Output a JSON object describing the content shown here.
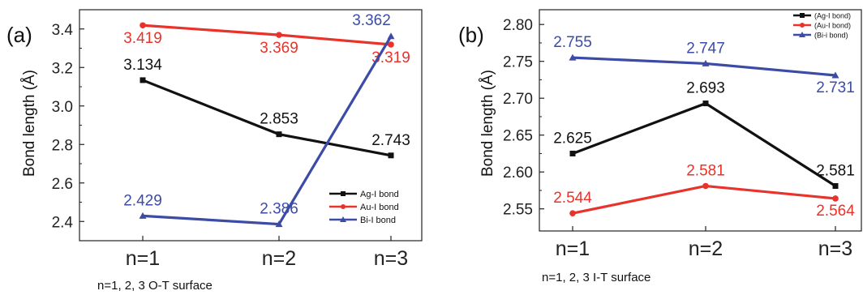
{
  "colors": {
    "black": "#111111",
    "red": "#e8332b",
    "blue": "#3b4ba6"
  },
  "chart_data": [
    {
      "type": "line",
      "panel_label": "(a)",
      "ylabel": "Bond length (Å)",
      "xlabel": "n=1, 2, 3 O-T surface",
      "categories": [
        "n=1",
        "n=2",
        "n=3"
      ],
      "ylim": [
        2.3,
        3.5
      ],
      "yticks": [
        "2.4",
        "2.6",
        "2.8",
        "3.0",
        "3.2",
        "3.4"
      ],
      "legend_position": "bottom-right",
      "series": [
        {
          "name": "Ag-I bond",
          "color": "#111111",
          "marker": "square",
          "values": [
            3.134,
            2.853,
            2.743
          ],
          "labels": [
            "3.134",
            "2.853",
            "2.743"
          ]
        },
        {
          "name": "Au-I bond",
          "color": "#e8332b",
          "marker": "circle",
          "values": [
            3.419,
            3.369,
            3.319
          ],
          "labels": [
            "3.419",
            "3.369",
            "3.319"
          ]
        },
        {
          "name": "Bi-I bond",
          "color": "#3b4ba6",
          "marker": "triangle",
          "values": [
            2.429,
            2.386,
            3.362
          ],
          "labels": [
            "2.429",
            "2.386",
            "3.362"
          ]
        }
      ]
    },
    {
      "type": "line",
      "panel_label": "(b)",
      "ylabel": "Bond length (Å)",
      "xlabel": "n=1, 2, 3 I-T surface",
      "categories": [
        "n=1",
        "n=2",
        "n=3"
      ],
      "ylim": [
        2.52,
        2.82
      ],
      "yticks": [
        "2.55",
        "2.60",
        "2.65",
        "2.70",
        "2.75",
        "2.80"
      ],
      "legend_position": "top-right",
      "series": [
        {
          "name": "(Ag-I bond)",
          "color": "#111111",
          "marker": "square",
          "values": [
            2.625,
            2.693,
            2.581
          ],
          "labels": [
            "2.625",
            "2.693",
            "2.581"
          ]
        },
        {
          "name": "(Au-I bond)",
          "color": "#e8332b",
          "marker": "circle",
          "values": [
            2.544,
            2.581,
            2.564
          ],
          "labels": [
            "2.544",
            "2.581",
            "2.564"
          ]
        },
        {
          "name": "(Bi-i bond)",
          "color": "#3b4ba6",
          "marker": "triangle",
          "values": [
            2.755,
            2.747,
            2.731
          ],
          "labels": [
            "2.755",
            "2.747",
            "2.731"
          ]
        }
      ]
    }
  ]
}
